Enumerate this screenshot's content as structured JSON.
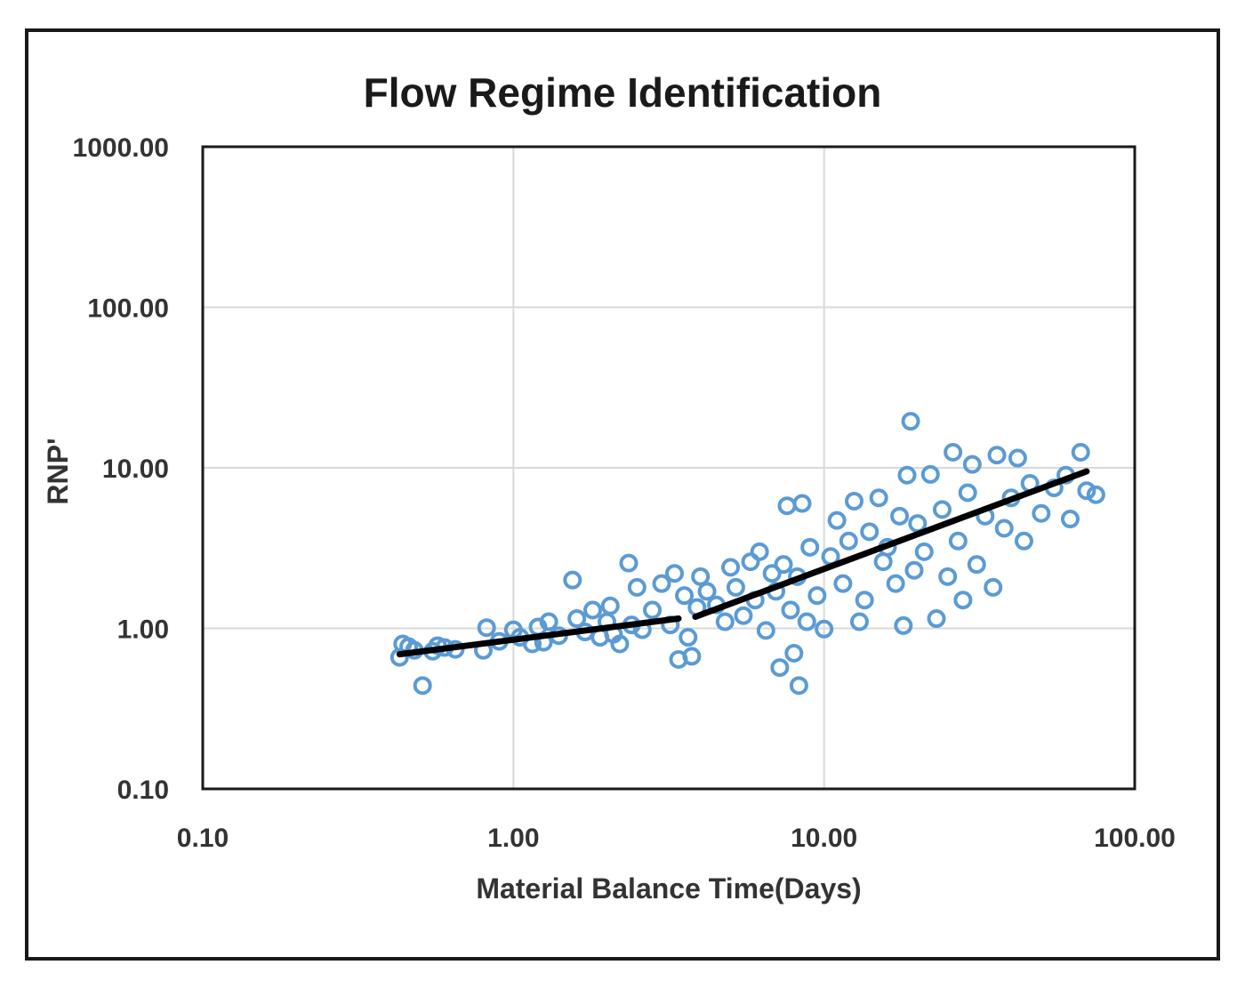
{
  "chart_data": {
    "type": "scatter",
    "title": "Flow Regime Identification",
    "xlabel": "Material Balance Time(Days)",
    "ylabel": "RNP'",
    "x_scale": "log",
    "y_scale": "log",
    "xlim": [
      0.1,
      100
    ],
    "ylim": [
      0.1,
      1000
    ],
    "x_ticks": [
      {
        "value": 0.1,
        "label": "0.10"
      },
      {
        "value": 1,
        "label": "1.00"
      },
      {
        "value": 10,
        "label": "10.00"
      },
      {
        "value": 100,
        "label": "100.00"
      }
    ],
    "y_ticks": [
      {
        "value": 0.1,
        "label": "0.10"
      },
      {
        "value": 1,
        "label": "1.00"
      },
      {
        "value": 10,
        "label": "10.00"
      },
      {
        "value": 100,
        "label": "100.00"
      },
      {
        "value": 1000,
        "label": "1000.00"
      }
    ],
    "grid": true,
    "colors": {
      "marker": "#5b9bd5",
      "trend": "#000000",
      "grid": "#d9d9d9",
      "axis": "#1a1a1a"
    },
    "series": [
      {
        "marker": "open-circle",
        "points": [
          [
            0.43,
            0.66
          ],
          [
            0.44,
            0.8
          ],
          [
            0.46,
            0.77
          ],
          [
            0.48,
            0.73
          ],
          [
            0.51,
            0.44
          ],
          [
            0.55,
            0.72
          ],
          [
            0.57,
            0.78
          ],
          [
            0.6,
            0.76
          ],
          [
            0.65,
            0.74
          ],
          [
            0.8,
            0.73
          ],
          [
            0.82,
            1.01
          ],
          [
            0.9,
            0.83
          ],
          [
            1.0,
            0.98
          ],
          [
            1.05,
            0.88
          ],
          [
            1.15,
            0.8
          ],
          [
            1.2,
            1.02
          ],
          [
            1.25,
            0.82
          ],
          [
            1.3,
            1.1
          ],
          [
            1.4,
            0.9
          ],
          [
            1.55,
            2.0
          ],
          [
            1.6,
            1.15
          ],
          [
            1.7,
            0.95
          ],
          [
            1.8,
            1.3
          ],
          [
            1.9,
            0.88
          ],
          [
            2.0,
            1.1
          ],
          [
            2.05,
            1.38
          ],
          [
            2.1,
            0.92
          ],
          [
            2.2,
            0.8
          ],
          [
            2.35,
            2.55
          ],
          [
            2.4,
            1.05
          ],
          [
            2.5,
            1.8
          ],
          [
            2.6,
            0.98
          ],
          [
            2.8,
            1.3
          ],
          [
            3.0,
            1.9
          ],
          [
            3.2,
            1.05
          ],
          [
            3.3,
            2.2
          ],
          [
            3.4,
            0.64
          ],
          [
            3.55,
            1.6
          ],
          [
            3.65,
            0.88
          ],
          [
            3.75,
            0.67
          ],
          [
            3.9,
            1.35
          ],
          [
            4.0,
            2.1
          ],
          [
            4.2,
            1.7
          ],
          [
            4.5,
            1.4
          ],
          [
            4.8,
            1.1
          ],
          [
            5.0,
            2.4
          ],
          [
            5.2,
            1.8
          ],
          [
            5.5,
            1.2
          ],
          [
            5.8,
            2.6
          ],
          [
            6.0,
            1.5
          ],
          [
            6.2,
            3.0
          ],
          [
            6.5,
            0.97
          ],
          [
            6.8,
            2.2
          ],
          [
            7.0,
            1.7
          ],
          [
            7.2,
            0.57
          ],
          [
            7.4,
            2.5
          ],
          [
            7.6,
            5.8
          ],
          [
            7.8,
            1.3
          ],
          [
            8.0,
            0.7
          ],
          [
            8.2,
            2.1
          ],
          [
            8.3,
            0.44
          ],
          [
            8.5,
            6.0
          ],
          [
            8.8,
            1.1
          ],
          [
            9.0,
            3.2
          ],
          [
            9.5,
            1.6
          ],
          [
            10.0,
            0.99
          ],
          [
            10.5,
            2.8
          ],
          [
            11.0,
            4.7
          ],
          [
            11.5,
            1.9
          ],
          [
            12.0,
            3.5
          ],
          [
            12.5,
            6.2
          ],
          [
            13.0,
            1.1
          ],
          [
            13.5,
            1.5
          ],
          [
            14.0,
            4.0
          ],
          [
            15.0,
            6.5
          ],
          [
            15.5,
            2.6
          ],
          [
            16.0,
            3.2
          ],
          [
            17.0,
            1.9
          ],
          [
            17.5,
            5.0
          ],
          [
            18.0,
            1.04
          ],
          [
            18.5,
            9.0
          ],
          [
            19.0,
            19.5
          ],
          [
            19.5,
            2.3
          ],
          [
            20.0,
            4.5
          ],
          [
            21.0,
            3.0
          ],
          [
            22.0,
            9.1
          ],
          [
            23.0,
            1.15
          ],
          [
            24.0,
            5.5
          ],
          [
            25.0,
            2.1
          ],
          [
            26.0,
            12.5
          ],
          [
            27.0,
            3.5
          ],
          [
            28.0,
            1.5
          ],
          [
            29.0,
            7.0
          ],
          [
            30.0,
            10.5
          ],
          [
            31.0,
            2.5
          ],
          [
            33.0,
            5.0
          ],
          [
            35.0,
            1.8
          ],
          [
            36.0,
            12.0
          ],
          [
            38.0,
            4.2
          ],
          [
            40.0,
            6.5
          ],
          [
            42.0,
            11.5
          ],
          [
            44.0,
            3.5
          ],
          [
            46.0,
            8.0
          ],
          [
            50.0,
            5.2
          ],
          [
            55.0,
            7.5
          ],
          [
            60.0,
            9.0
          ],
          [
            62.0,
            4.8
          ],
          [
            67.0,
            12.5
          ],
          [
            70.0,
            7.2
          ],
          [
            75.0,
            6.8
          ]
        ]
      }
    ],
    "trend_lines": [
      {
        "points": [
          [
            0.43,
            0.69
          ],
          [
            3.4,
            1.15
          ]
        ]
      },
      {
        "points": [
          [
            3.85,
            1.18
          ],
          [
            70.0,
            9.5
          ]
        ]
      }
    ]
  }
}
